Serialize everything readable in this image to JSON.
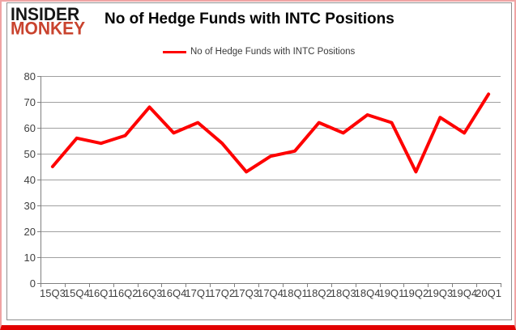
{
  "logo": {
    "line1": "INSIDER",
    "line2": "MONKEY"
  },
  "header": {
    "title": "No of Hedge Funds with INTC Positions"
  },
  "legend": {
    "label": "No of Hedge Funds with INTC Positions"
  },
  "colors": {
    "series": "#fe0000",
    "logo_red": "#c9432e",
    "grid": "#a0a0a0",
    "axis": "#808080",
    "tick_text": "#3f3f3f",
    "border_pink": "#f0a4a4",
    "border_bottom_red": "#e20000"
  },
  "chart_data": {
    "type": "line",
    "title": "No of Hedge Funds with INTC Positions",
    "categories": [
      "15Q3",
      "15Q4",
      "16Q1",
      "16Q2",
      "16Q3",
      "16Q4",
      "17Q1",
      "17Q2",
      "17Q3",
      "17Q4",
      "18Q1",
      "18Q2",
      "18Q3",
      "18Q4",
      "19Q1",
      "19Q2",
      "19Q3",
      "19Q4",
      "20Q1"
    ],
    "series": [
      {
        "name": "No of Hedge Funds with INTC Positions",
        "values": [
          45,
          56,
          54,
          57,
          68,
          58,
          62,
          54,
          43,
          49,
          51,
          62,
          58,
          65,
          62,
          43,
          64,
          58,
          73
        ]
      }
    ],
    "xlabel": "",
    "ylabel": "",
    "ylim": [
      0,
      80
    ],
    "ytick_step": 10,
    "yticks": [
      0,
      10,
      20,
      30,
      40,
      50,
      60,
      70,
      80
    ],
    "grid": true,
    "legend_position": "top"
  }
}
